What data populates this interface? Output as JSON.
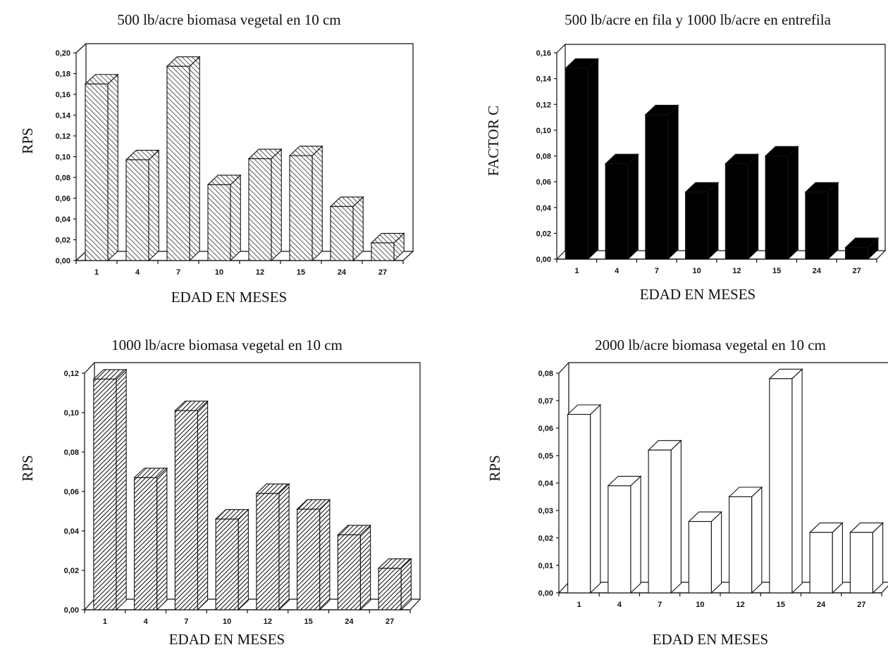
{
  "chart_data": [
    {
      "type": "bar",
      "title": "500 lb/acre biomasa vegetal en 10 cm",
      "xlabel": "EDAD EN MESES",
      "ylabel": "RPS",
      "categories": [
        "1",
        "4",
        "7",
        "10",
        "12",
        "15",
        "24",
        "27"
      ],
      "values": [
        0.17,
        0.097,
        0.187,
        0.073,
        0.098,
        0.101,
        0.052,
        0.017
      ],
      "ylim": [
        0,
        0.2
      ],
      "yticks": [
        "0,00",
        "0,02",
        "0,04",
        "0,06",
        "0,08",
        "0,10",
        "0,12",
        "0,14",
        "0,16",
        "0,18",
        "0,20"
      ],
      "fill": "backslash-hatch"
    },
    {
      "type": "bar",
      "title": "500 lb/acre en fila y 1000 lb/acre en entrefila",
      "xlabel": "EDAD EN MESES",
      "ylabel": "FACTOR C",
      "categories": [
        "1",
        "4",
        "7",
        "10",
        "12",
        "15",
        "24",
        "27"
      ],
      "values": [
        0.148,
        0.074,
        0.112,
        0.052,
        0.074,
        0.08,
        0.052,
        0.009
      ],
      "ylim": [
        0,
        0.16
      ],
      "yticks": [
        "0,00",
        "0,02",
        "0,04",
        "0,06",
        "0,08",
        "0,10",
        "0,12",
        "0,14",
        "0,16"
      ],
      "fill": "solid-black"
    },
    {
      "type": "bar",
      "title": "1000 lb/acre biomasa vegetal en 10 cm",
      "xlabel": "EDAD EN MESES",
      "ylabel": "RPS",
      "categories": [
        "1",
        "4",
        "7",
        "10",
        "12",
        "15",
        "24",
        "27"
      ],
      "values": [
        0.117,
        0.067,
        0.101,
        0.046,
        0.059,
        0.051,
        0.038,
        0.021
      ],
      "ylim": [
        0,
        0.12
      ],
      "yticks": [
        "0,00",
        "0,02",
        "0,04",
        "0,06",
        "0,08",
        "0,10",
        "0,12"
      ],
      "fill": "forward-hatch"
    },
    {
      "type": "bar",
      "title": "2000 lb/acre biomasa vegetal en 10 cm",
      "xlabel": "EDAD EN MESES",
      "ylabel": "RPS",
      "categories": [
        "1",
        "4",
        "7",
        "10",
        "12",
        "15",
        "24",
        "27"
      ],
      "values": [
        0.065,
        0.039,
        0.052,
        0.026,
        0.035,
        0.078,
        0.022,
        0.022
      ],
      "ylim": [
        0,
        0.08
      ],
      "yticks": [
        "0,00",
        "0,01",
        "0,02",
        "0,03",
        "0,04",
        "0,05",
        "0,06",
        "0,07",
        "0,08"
      ],
      "fill": "white"
    }
  ]
}
